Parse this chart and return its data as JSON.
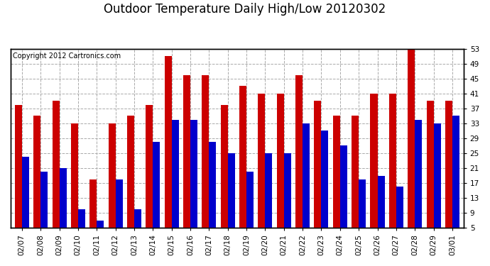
{
  "title": "Outdoor Temperature Daily High/Low 20120302",
  "copyright": "Copyright 2012 Cartronics.com",
  "dates": [
    "02/07",
    "02/08",
    "02/09",
    "02/10",
    "02/11",
    "02/12",
    "02/13",
    "02/14",
    "02/15",
    "02/16",
    "02/17",
    "02/18",
    "02/19",
    "02/20",
    "02/21",
    "02/22",
    "02/23",
    "02/24",
    "02/25",
    "02/26",
    "02/27",
    "02/28",
    "02/29",
    "03/01"
  ],
  "highs": [
    38,
    35,
    39,
    33,
    18,
    33,
    35,
    38,
    51,
    46,
    46,
    38,
    43,
    41,
    41,
    46,
    39,
    35,
    35,
    41,
    41,
    53,
    39,
    39
  ],
  "lows": [
    24,
    20,
    21,
    10,
    7,
    18,
    10,
    28,
    34,
    34,
    28,
    25,
    20,
    25,
    25,
    33,
    31,
    27,
    18,
    19,
    16,
    34,
    33,
    35
  ],
  "high_color": "#cc0000",
  "low_color": "#0000cc",
  "bg_color": "#ffffff",
  "plot_bg_color": "#ffffff",
  "grid_color": "#aaaaaa",
  "ylim_min": 5.0,
  "ylim_max": 53.0,
  "yticks": [
    5.0,
    9.0,
    13.0,
    17.0,
    21.0,
    25.0,
    29.0,
    33.0,
    37.0,
    41.0,
    45.0,
    49.0,
    53.0
  ],
  "title_fontsize": 12,
  "copyright_fontsize": 7,
  "tick_fontsize": 7.5,
  "bar_width": 0.38
}
